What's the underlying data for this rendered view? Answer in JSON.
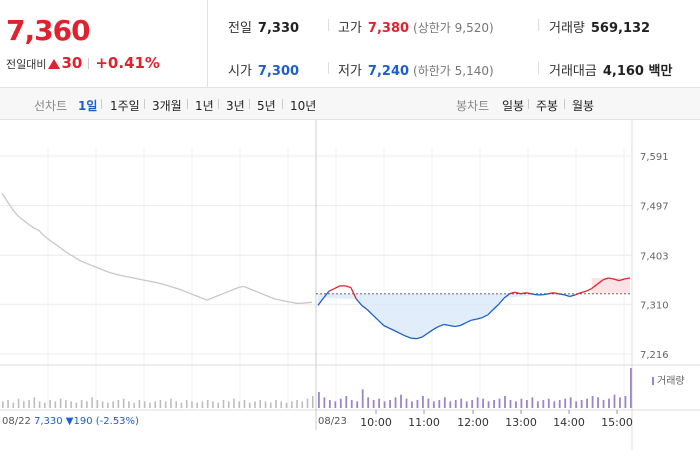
{
  "quote": {
    "price": "7,360",
    "change_label": "전일대비",
    "change_value": "30",
    "change_percent": "+0.41%",
    "prev_close_label": "전일",
    "prev_close": "7,330",
    "high_label": "고가",
    "high": "7,380",
    "upper_limit": "(상한가 9,520)",
    "volume_label": "거래량",
    "volume": "569,132",
    "open_label": "시가",
    "open": "7,300",
    "low_label": "저가",
    "low": "7,240",
    "lower_limit": "(하한가 5,140)",
    "amount_label": "거래대금",
    "amount": "4,160 백만"
  },
  "toolbar": {
    "line_label": "선차트",
    "line_periods": [
      "1일",
      "1주일",
      "3개월",
      "1년",
      "3년",
      "5년",
      "10년"
    ],
    "active_period": "1일",
    "candle_label": "봉차트",
    "candle_periods": [
      "일봉",
      "주봉",
      "월봉"
    ]
  },
  "chart_data": {
    "type": "line",
    "y_ticks": [
      7591,
      7497,
      7403,
      7310,
      7216
    ],
    "y_tick_labels": [
      "7,591",
      "7,497",
      "7,403",
      "7,310",
      "7,216"
    ],
    "ylim": [
      7216,
      7591
    ],
    "reference_price": 7330,
    "prev_day": {
      "label": "08/22",
      "summary": "7,330 ▼190 (-2.53%)",
      "prices": [
        7520,
        7505,
        7490,
        7478,
        7470,
        7462,
        7455,
        7450,
        7440,
        7432,
        7425,
        7418,
        7410,
        7404,
        7398,
        7392,
        7388,
        7384,
        7380,
        7376,
        7372,
        7369,
        7366,
        7364,
        7362,
        7360,
        7358,
        7356,
        7354,
        7352,
        7350,
        7347,
        7344,
        7341,
        7338,
        7334,
        7330,
        7326,
        7322,
        7318,
        7322,
        7326,
        7330,
        7334,
        7338,
        7342,
        7344,
        7340,
        7336,
        7332,
        7328,
        7324,
        7320,
        7318,
        7316,
        7314,
        7312,
        7312,
        7313,
        7314
      ]
    },
    "today": {
      "label": "08/23",
      "time_labels": [
        "10:00",
        "11:00",
        "12:00",
        "13:00",
        "14:00",
        "15:00"
      ],
      "prices": [
        7308,
        7322,
        7335,
        7340,
        7345,
        7345,
        7342,
        7320,
        7308,
        7300,
        7290,
        7280,
        7270,
        7265,
        7260,
        7255,
        7250,
        7246,
        7245,
        7248,
        7255,
        7262,
        7268,
        7272,
        7270,
        7268,
        7270,
        7275,
        7280,
        7282,
        7285,
        7290,
        7300,
        7310,
        7322,
        7330,
        7333,
        7330,
        7332,
        7330,
        7328,
        7328,
        7330,
        7332,
        7330,
        7328,
        7325,
        7328,
        7332,
        7335,
        7340,
        7348,
        7356,
        7360,
        7358,
        7355,
        7358,
        7360
      ]
    },
    "volume": {
      "legend": "거래량",
      "prev_day": [
        5,
        6,
        4,
        7,
        5,
        6,
        8,
        5,
        4,
        6,
        5,
        7,
        6,
        5,
        4,
        6,
        5,
        8,
        6,
        5,
        4,
        5,
        6,
        7,
        5,
        4,
        6,
        5,
        4,
        5,
        6,
        5,
        7,
        5,
        4,
        6,
        5,
        4,
        5,
        6,
        5,
        4,
        6,
        5,
        7,
        5,
        6,
        4,
        5,
        6,
        5,
        4,
        6,
        5,
        4,
        5,
        6,
        5,
        7,
        9
      ],
      "today": [
        12,
        8,
        6,
        5,
        7,
        9,
        6,
        5,
        14,
        8,
        6,
        7,
        5,
        6,
        8,
        10,
        7,
        5,
        6,
        9,
        7,
        5,
        6,
        8,
        5,
        6,
        7,
        5,
        6,
        8,
        7,
        5,
        6,
        7,
        9,
        6,
        5,
        7,
        6,
        8,
        5,
        6,
        7,
        5,
        6,
        7,
        8,
        5,
        6,
        7,
        9,
        8,
        6,
        7,
        10,
        8,
        9,
        30
      ]
    }
  }
}
